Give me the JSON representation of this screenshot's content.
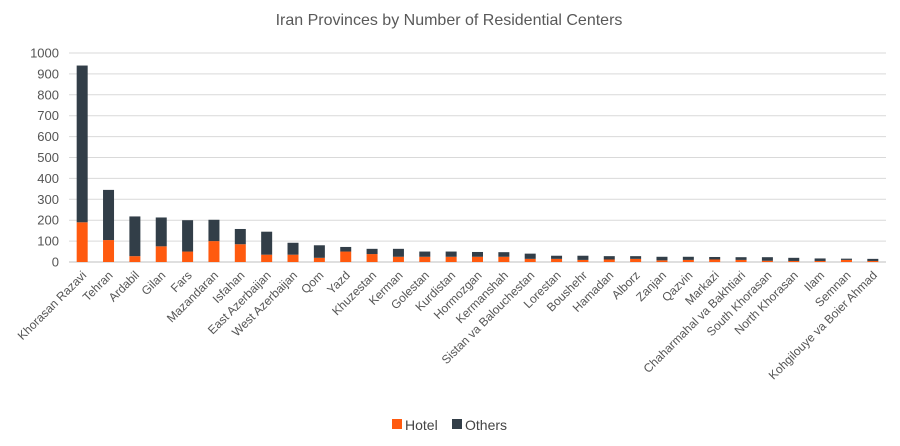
{
  "chart_data": {
    "type": "bar",
    "stacked": true,
    "title": "Iran Provinces by Number of Residential Centers",
    "xlabel": "",
    "ylabel": "",
    "ylim": [
      0,
      1000
    ],
    "yticks": [
      0,
      100,
      200,
      300,
      400,
      500,
      600,
      700,
      800,
      900,
      1000
    ],
    "grid": true,
    "legend": "bottom",
    "categories": [
      "Khorasan Razavi",
      "Tehran",
      "Ardabil",
      "Gilan",
      "Fars",
      "Mazandaran",
      "Isfahan",
      "East Azerbaijan",
      "West Azerbaijan",
      "Qom",
      "Yazd",
      "Khuzestan",
      "Kerman",
      "Golestan",
      "Kurdistan",
      "Hormozgan",
      "Kermanshah",
      "Sistan va Balouchestan",
      "Lorestan",
      "Boushehr",
      "Hamadan",
      "Alborz",
      "Zanjan",
      "Qazvin",
      "Markazi",
      "Chaharmahal va Bakhtiari",
      "South Khorasan",
      "North Khorasan",
      "Ilam",
      "Semnan",
      "Kohgilouye va Boier Ahmad"
    ],
    "series": [
      {
        "name": "Hotel",
        "color": "#FF5A0F",
        "values": [
          190,
          105,
          28,
          75,
          50,
          100,
          85,
          35,
          35,
          20,
          50,
          38,
          25,
          25,
          25,
          25,
          25,
          15,
          15,
          10,
          12,
          15,
          8,
          10,
          12,
          10,
          6,
          5,
          5,
          10,
          5
        ]
      },
      {
        "name": "Others",
        "color": "#323E48",
        "values": [
          750,
          240,
          190,
          138,
          150,
          102,
          73,
          110,
          57,
          60,
          22,
          25,
          38,
          25,
          25,
          23,
          22,
          25,
          15,
          20,
          16,
          13,
          17,
          15,
          12,
          13,
          17,
          15,
          12,
          6,
          10
        ]
      }
    ]
  }
}
